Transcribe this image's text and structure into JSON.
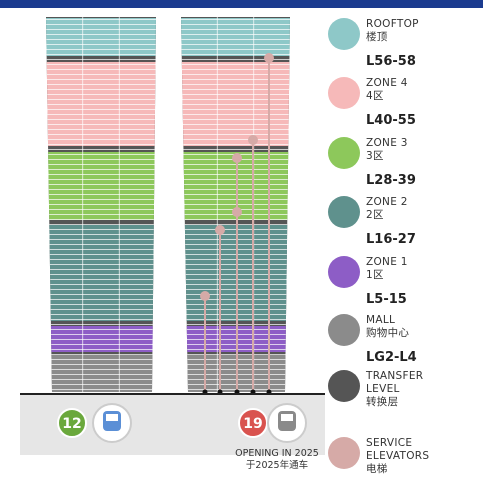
{
  "legend": {
    "items": [
      {
        "name": "ROOFTOP",
        "name_cn": "楼顶",
        "levels": "L56-58",
        "color": "#8ec8c8"
      },
      {
        "name": "ZONE 4",
        "name_cn": "4区",
        "levels": "L40-55",
        "color": "#f6b9b9"
      },
      {
        "name": "ZONE 3",
        "name_cn": "3区",
        "levels": "L28-39",
        "color": "#8dc85b"
      },
      {
        "name": "ZONE 2",
        "name_cn": "2区",
        "levels": "L16-27",
        "color": "#5f918d"
      },
      {
        "name": "ZONE 1",
        "name_cn": "1区",
        "levels": "L5-15",
        "color": "#8d5dc6"
      },
      {
        "name": "MALL",
        "name_cn": "购物中心",
        "levels": "LG2-L4",
        "color": "#8b8b8b"
      },
      {
        "name": "TRANSFER LEVEL",
        "name_cn": "转换层",
        "color": "#555555"
      },
      {
        "name": "SERVICE ELEVATORS",
        "name_cn": "电梯",
        "color": "#d6aaa7"
      }
    ]
  },
  "metro": {
    "lines": [
      {
        "number": "12",
        "color": "#6aa83c"
      },
      {
        "number": "19",
        "color": "#d9534f"
      }
    ],
    "note": "OPENING IN 2025",
    "note_cn": "于2025年通车"
  }
}
